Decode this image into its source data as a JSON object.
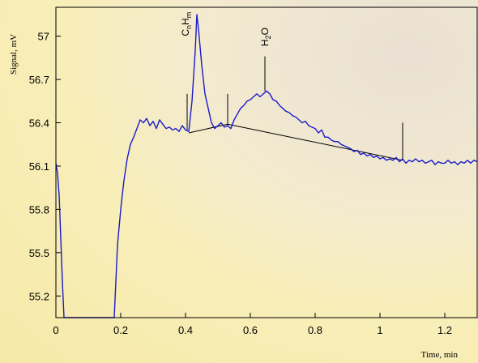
{
  "chart_data": {
    "type": "line",
    "title": "",
    "xlabel": "Time, min",
    "ylabel": "Signal, mV",
    "xlim": [
      0,
      1.3
    ],
    "ylim": [
      55.05,
      57.2
    ],
    "x_ticks": [
      0,
      0.2,
      0.4,
      0.6,
      0.8,
      1,
      1.2
    ],
    "x_tick_labels": [
      "0",
      "0.2",
      "0.4",
      "0.6",
      "0.8",
      "1",
      "1.2"
    ],
    "y_ticks": [
      55.2,
      55.5,
      55.8,
      56.1,
      56.4,
      56.7,
      57
    ],
    "y_tick_labels": [
      "55.2",
      "55.5",
      "55.8",
      "56.1",
      "56.4",
      "56.7",
      "57"
    ],
    "grid": false,
    "series": [
      {
        "color": "#1a1acc",
        "x": [
          0,
          0.005,
          0.01,
          0.015,
          0.02,
          0.025,
          0.18,
          0.185,
          0.19,
          0.2,
          0.21,
          0.22,
          0.23,
          0.24,
          0.25,
          0.26,
          0.27,
          0.28,
          0.29,
          0.3,
          0.31,
          0.32,
          0.33,
          0.34,
          0.35,
          0.36,
          0.37,
          0.38,
          0.39,
          0.4,
          0.41,
          0.42,
          0.43,
          0.435,
          0.44,
          0.45,
          0.46,
          0.47,
          0.48,
          0.49,
          0.5,
          0.51,
          0.52,
          0.53,
          0.54,
          0.55,
          0.56,
          0.57,
          0.58,
          0.59,
          0.6,
          0.61,
          0.62,
          0.63,
          0.64,
          0.65,
          0.66,
          0.67,
          0.68,
          0.69,
          0.7,
          0.71,
          0.72,
          0.73,
          0.74,
          0.75,
          0.76,
          0.77,
          0.78,
          0.79,
          0.8,
          0.81,
          0.82,
          0.83,
          0.84,
          0.85,
          0.86,
          0.87,
          0.88,
          0.89,
          0.9,
          0.91,
          0.92,
          0.93,
          0.94,
          0.95,
          0.96,
          0.97,
          0.98,
          0.99,
          1.0,
          1.01,
          1.02,
          1.03,
          1.04,
          1.05,
          1.06,
          1.07,
          1.08,
          1.09,
          1.1,
          1.11,
          1.12,
          1.13,
          1.14,
          1.15,
          1.16,
          1.17,
          1.18,
          1.19,
          1.2,
          1.21,
          1.22,
          1.23,
          1.24,
          1.25,
          1.26,
          1.27,
          1.28,
          1.29,
          1.3
        ],
        "y": [
          56.12,
          56.05,
          55.9,
          55.6,
          55.3,
          55.05,
          55.05,
          55.3,
          55.55,
          55.8,
          56.0,
          56.15,
          56.25,
          56.3,
          56.36,
          56.42,
          56.4,
          56.43,
          56.38,
          56.41,
          56.36,
          56.42,
          56.39,
          56.36,
          56.37,
          56.35,
          56.36,
          56.34,
          56.38,
          56.35,
          56.34,
          56.55,
          56.9,
          57.15,
          57.05,
          56.8,
          56.6,
          56.5,
          56.4,
          56.36,
          56.38,
          56.4,
          56.37,
          56.38,
          56.36,
          56.42,
          56.46,
          56.5,
          56.52,
          56.55,
          56.56,
          56.58,
          56.6,
          56.58,
          56.6,
          56.62,
          56.6,
          56.56,
          56.55,
          56.52,
          56.5,
          56.48,
          56.47,
          56.45,
          56.44,
          56.42,
          56.4,
          56.41,
          56.38,
          56.37,
          56.36,
          56.33,
          56.35,
          56.3,
          56.3,
          56.28,
          56.27,
          56.27,
          56.25,
          56.24,
          56.23,
          56.22,
          56.2,
          56.21,
          56.18,
          56.19,
          56.17,
          56.18,
          56.16,
          56.17,
          56.15,
          56.16,
          56.14,
          56.15,
          56.14,
          56.16,
          56.13,
          56.15,
          56.12,
          56.14,
          56.13,
          56.15,
          56.13,
          56.14,
          56.12,
          56.13,
          56.14,
          56.11,
          56.13,
          56.12,
          56.12,
          56.14,
          56.12,
          56.13,
          56.11,
          56.13,
          56.12,
          56.14,
          56.12,
          56.14,
          56.13
        ]
      }
    ],
    "baselines": [
      {
        "x": [
          0.41,
          0.53
        ],
        "y": [
          56.33,
          56.39
        ]
      },
      {
        "x": [
          0.53,
          1.07
        ],
        "y": [
          56.39,
          56.14
        ]
      }
    ],
    "markers": [
      {
        "x": 0.405,
        "y0": 56.35,
        "y1": 56.6
      },
      {
        "x": 0.53,
        "y0": 56.38,
        "y1": 56.6
      },
      {
        "x": 1.07,
        "y0": 56.15,
        "y1": 56.4
      },
      {
        "x": 0.645,
        "y0": 56.62,
        "y1": 56.86
      }
    ],
    "annotations": [
      {
        "x": 0.4,
        "y": 57.0,
        "label": "CnHm",
        "base": "C",
        "sub1": "n",
        "mid": "H",
        "sub2": "m"
      },
      {
        "x": 0.645,
        "y": 56.93,
        "label": "H2O",
        "base": "H",
        "sub1": "2",
        "mid": "O",
        "sub2": ""
      }
    ]
  }
}
